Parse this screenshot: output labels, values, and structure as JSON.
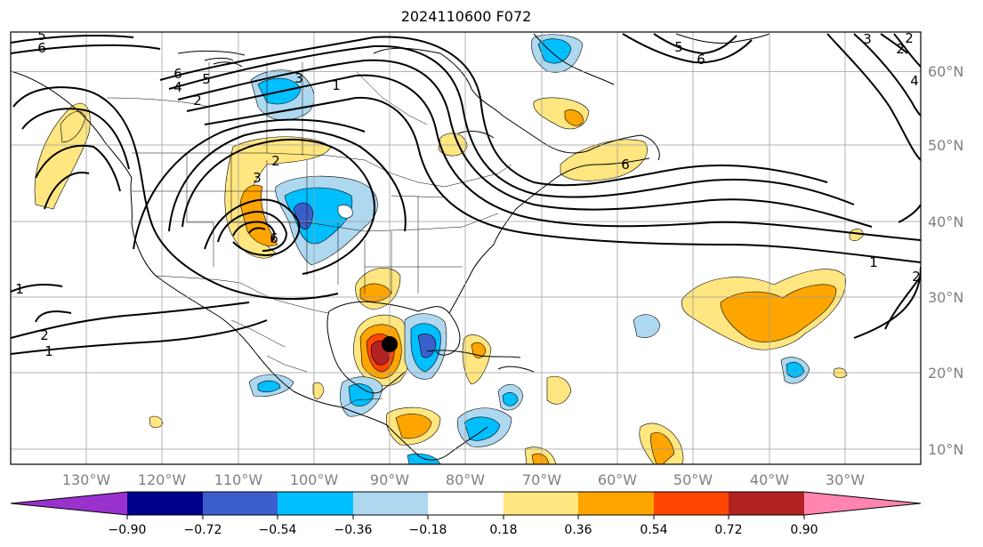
{
  "title": "2024110600 F072",
  "lon_labels": [
    "130°W",
    "120°W",
    "110°W",
    "100°W",
    "90°W",
    "80°W",
    "70°W",
    "60°W",
    "50°W",
    "40°W",
    "30°W"
  ],
  "lat_labels": [
    "60°N",
    "50°N",
    "40°N",
    "30°N",
    "20°N",
    "10°N"
  ],
  "colorbar": {
    "ticks": [
      "−0.90",
      "−0.72",
      "−0.54",
      "−0.36",
      "−0.18",
      "0.18",
      "0.36",
      "0.54",
      "0.72",
      "0.90"
    ],
    "colors": [
      "#9932cc",
      "#00008b",
      "#3a5fcd",
      "#00bfff",
      "#add8f0",
      "#ffffff",
      "#ffe680",
      "#ffa500",
      "#ff4500",
      "#b22222",
      "#ff85b0"
    ]
  },
  "contour_labels": [
    "5",
    "6",
    "6",
    "5",
    "4",
    "2",
    "1",
    "3",
    "2",
    "3",
    "6",
    "1",
    "2",
    "1",
    "2",
    "5",
    "6",
    "3",
    "2",
    "4",
    "1",
    "2",
    "6"
  ],
  "storm_marker": "storm-center"
}
